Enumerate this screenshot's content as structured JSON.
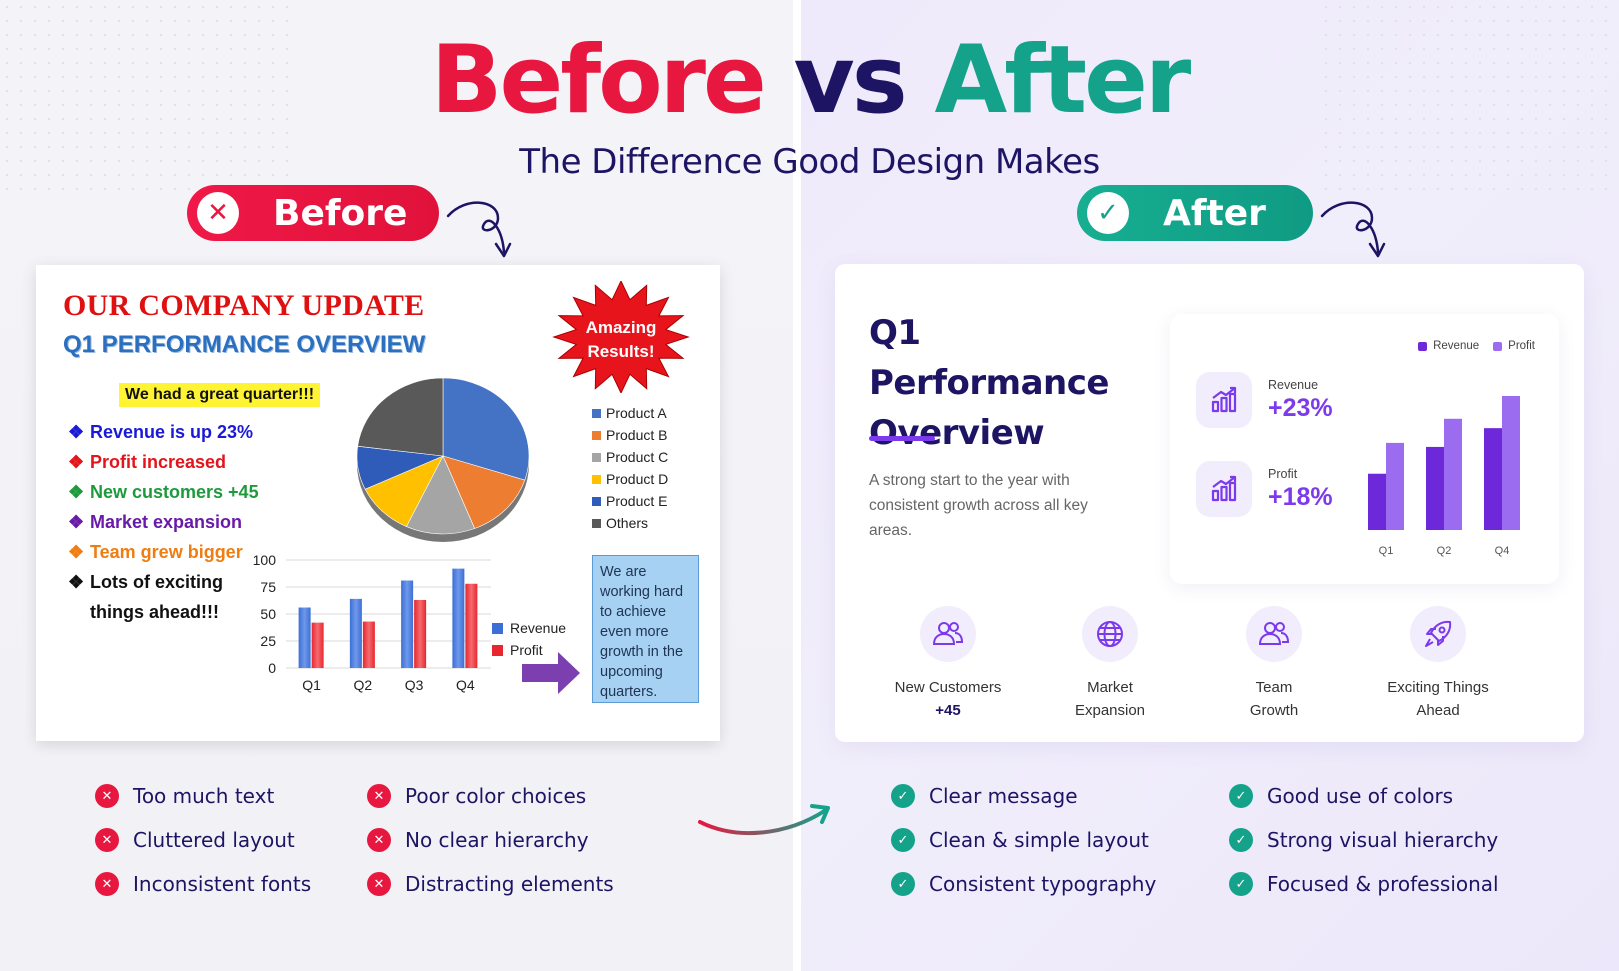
{
  "header": {
    "title_before": "Before",
    "title_vs": "vs",
    "title_after": "After",
    "subtitle": "The Difference Good Design Makes"
  },
  "labels": {
    "before": "Before",
    "after": "After"
  },
  "before_slide": {
    "title": "OUR COMPANY UPDATE",
    "subtitle": "Q1 PERFORMANCE OVERVIEW",
    "highlight": "We had a great quarter!!!",
    "burst_line1": "Amazing",
    "burst_line2": "Results!",
    "bullets": [
      {
        "text": "Revenue is up 23%",
        "color": "#1a1ad6"
      },
      {
        "text": "Profit increased",
        "color": "#e3141b"
      },
      {
        "text": "New customers +45",
        "color": "#1e9a3c"
      },
      {
        "text": "Market expansion",
        "color": "#6a1aa8"
      },
      {
        "text": "Team grew bigger",
        "color": "#ef7d12"
      },
      {
        "text": "Lots of exciting",
        "color": "#111111"
      },
      {
        "text": "things ahead!!!",
        "color": "#111111"
      }
    ],
    "note": "We are working hard to achieve even more growth in the upcoming quarters."
  },
  "after_slide": {
    "title_line1": "Q1 Performance",
    "title_line2": "Overview",
    "description": "A strong start to the year with consistent growth across all key areas.",
    "kpis": [
      {
        "label": "Revenue",
        "value": "+23%"
      },
      {
        "label": "Profit",
        "value": "+18%"
      }
    ],
    "features": [
      {
        "label": "New Customers",
        "value": "+45",
        "icon": "users-icon"
      },
      {
        "label": "Market",
        "label2": "Expansion",
        "icon": "globe-icon"
      },
      {
        "label": "Team",
        "label2": "Growth",
        "icon": "team-icon"
      },
      {
        "label": "Exciting Things",
        "label2": "Ahead",
        "icon": "rocket-icon"
      }
    ]
  },
  "cons": {
    "col1": [
      "Too much text",
      "Cluttered layout",
      "Inconsistent fonts"
    ],
    "col2": [
      "Poor color choices",
      "No clear hierarchy",
      "Distracting elements"
    ]
  },
  "pros": {
    "col1": [
      "Clear message",
      "Clean & simple layout",
      "Consistent typography"
    ],
    "col2": [
      "Good use of colors",
      "Strong visual hierarchy",
      "Focused & professional"
    ]
  },
  "colors": {
    "red": "#e8173f",
    "navy": "#1d1464",
    "green": "#14a38a",
    "purple": "#7c3aed",
    "light_purple": "#9b6cf0"
  },
  "chart_data": [
    {
      "type": "pie",
      "title": "",
      "categories": [
        "Product A",
        "Product B",
        "Product C",
        "Product D",
        "Product E",
        "Others"
      ],
      "values": [
        30,
        14,
        13,
        11,
        9,
        23
      ],
      "colors": [
        "#4472c4",
        "#ed7d31",
        "#a5a5a5",
        "#ffc000",
        "#2f5cb8",
        "#595959"
      ],
      "legend": "right"
    },
    {
      "type": "bar",
      "title": "",
      "categories": [
        "Q1",
        "Q2",
        "Q3",
        "Q4"
      ],
      "series": [
        {
          "name": "Revenue",
          "values": [
            56,
            64,
            81,
            92
          ],
          "color": "#3b6fd6"
        },
        {
          "name": "Profit",
          "values": [
            42,
            43,
            63,
            78
          ],
          "color": "#e8262e"
        }
      ],
      "ylim": [
        0,
        100
      ],
      "yticks": [
        0,
        25,
        50,
        75,
        100
      ],
      "grid": true,
      "legend": "right"
    },
    {
      "type": "bar",
      "title": "",
      "categories": [
        "Q1",
        "Q2",
        "Q4"
      ],
      "series": [
        {
          "name": "Revenue",
          "values": [
            42,
            62,
            76
          ],
          "color": "#6d28d9"
        },
        {
          "name": "Profit",
          "values": [
            65,
            83,
            100
          ],
          "color": "#9b6cf0"
        }
      ],
      "ylim": [
        0,
        100
      ],
      "grid": false,
      "legend": "top-right"
    }
  ]
}
